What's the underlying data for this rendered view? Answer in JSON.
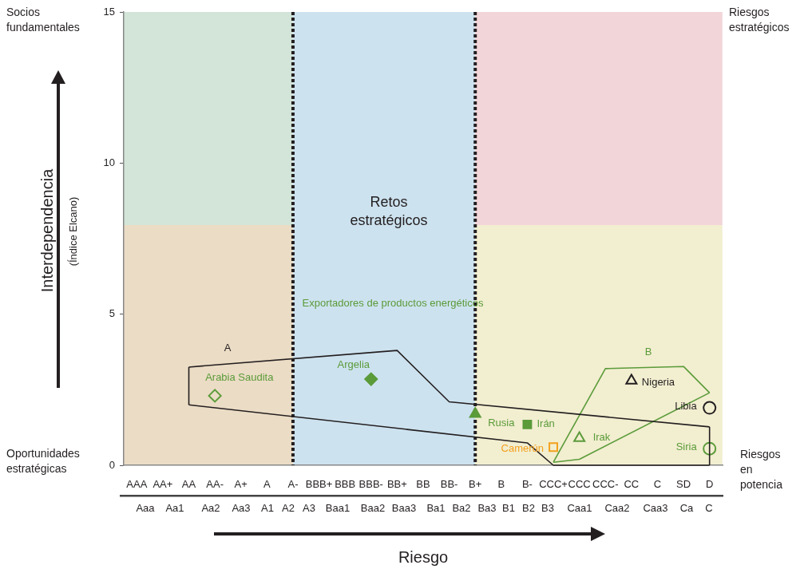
{
  "chart_data": {
    "type": "scatter",
    "xlabel": "Riesgo",
    "ylabel": "Interdependencia",
    "categories": [
      "AAA",
      "AA+",
      "AA",
      "AA-",
      "A+",
      "A",
      "A-",
      "BBB+",
      "BBB",
      "BBB-",
      "BB+",
      "BB",
      "BB-",
      "B+",
      "B",
      "B-",
      "CCC+",
      "CCC",
      "CCC-",
      "CC",
      "C",
      "SD",
      "D"
    ],
    "ylim": [
      0,
      15
    ],
    "yticks": [
      0,
      5,
      10,
      15
    ],
    "ref_lines": [
      {
        "axis": "x",
        "value": "A-",
        "color": "#231f20",
        "line_style": "dashed"
      },
      {
        "axis": "x",
        "value": "B+",
        "color": "#231f20",
        "line_style": "dashed"
      }
    ],
    "series": [
      {
        "type": "line",
        "color": "#231f20",
        "marker": "none",
        "x": [
          "AA",
          "BB+",
          "BB-",
          "D"
        ],
        "values": [
          3.25,
          3.8,
          2.1,
          1.27
        ]
      },
      {
        "type": "line",
        "color": "#231f20",
        "marker": "none",
        "x": [
          "AA",
          "B-",
          "CCC+",
          "D"
        ],
        "values": [
          2.0,
          0.74,
          0,
          0
        ]
      },
      {
        "type": "line",
        "color": "#231f20",
        "marker": "none",
        "x": [
          "AA",
          "AA"
        ],
        "values": [
          2.0,
          3.25
        ]
      },
      {
        "type": "line",
        "color": "#231f20",
        "marker": "none",
        "x": [
          "D",
          "D"
        ],
        "values": [
          0,
          1.27
        ]
      },
      {
        "type": "line",
        "color": "#5b9b3a",
        "marker": "none",
        "x": [
          "CCC+",
          "CCC-",
          "SD",
          "D"
        ],
        "values": [
          0.1,
          3.2,
          3.27,
          2.4
        ]
      },
      {
        "type": "line",
        "color": "#5b9b3a",
        "marker": "none",
        "x": [
          "CCC+",
          "CCC",
          "D"
        ],
        "values": [
          0.1,
          0.2,
          2.4
        ]
      },
      {
        "name": "Arabia Saudita",
        "color": "#5b9b3a",
        "marker": "diamond",
        "x": [
          "AA-"
        ],
        "values": [
          2.3
        ]
      },
      {
        "name": "Argelia",
        "color": "#5b9b3a",
        "marker": "diamond",
        "x": [
          "BBB-"
        ],
        "values": [
          2.85
        ]
      },
      {
        "name": "Rusia",
        "color": "#5b9b3a",
        "marker": "triangle",
        "x": [
          "B+"
        ],
        "values": [
          1.7
        ]
      },
      {
        "name": "Irán",
        "color": "#5b9b3a",
        "marker": "square",
        "x": [
          "B-"
        ],
        "values": [
          1.35
        ]
      },
      {
        "name": "Camerún",
        "color": "#f4a11d",
        "marker": "square",
        "x": [
          "CCC+"
        ],
        "values": [
          0.6
        ]
      },
      {
        "name": "Irak",
        "color": "#5b9b3a",
        "marker": "triangle",
        "x": [
          "CCC"
        ],
        "values": [
          0.9
        ]
      },
      {
        "name": "Nigeria",
        "color": "#231f20",
        "marker": "triangle",
        "x": [
          "CC"
        ],
        "values": [
          2.8
        ]
      },
      {
        "name": "Libia",
        "color": "#231f20",
        "marker": "circle",
        "x": [
          "D"
        ],
        "values": [
          1.9
        ]
      },
      {
        "name": "Siria",
        "color": "#5b9b3a",
        "marker": "circle",
        "x": [
          "D"
        ],
        "values": [
          0.55
        ]
      }
    ],
    "annotations": [
      "(Índice Elcano)",
      "Socios fundamentales",
      "Riesgos estratégicos",
      "Oportunidades estratégicas",
      "Riesgos en potencia",
      "Retos estratégicos",
      "Exportadores de productos energéticos",
      "A",
      "B",
      "Aaa",
      "Aa1",
      "Aa2",
      "Aa3",
      "A1",
      "A2",
      "A3",
      "Baa1",
      "Baa2",
      "Baa3",
      "Ba1",
      "Ba2",
      "Ba3",
      "B1",
      "B2",
      "B3",
      "Caa1",
      "Caa2",
      "Caa3",
      "Ca",
      "C"
    ]
  }
}
